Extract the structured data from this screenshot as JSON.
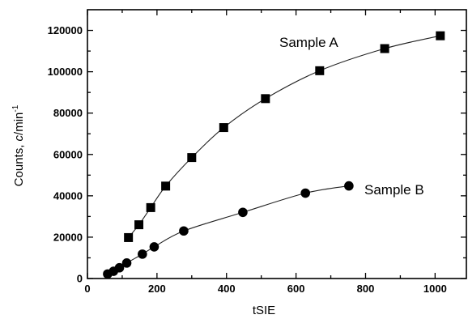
{
  "chart_data": {
    "type": "scatter",
    "title": "",
    "xlabel": "tSIE",
    "ylabel_main": "Counts, ",
    "ylabel_italic": "c",
    "ylabel_unit": "/min",
    "ylabel_sup": "-1",
    "xlim": [
      0,
      1090
    ],
    "ylim": [
      0,
      130000
    ],
    "xticks": [
      0,
      200,
      400,
      600,
      800,
      1000
    ],
    "yticks": [
      0,
      20000,
      40000,
      60000,
      80000,
      100000,
      120000
    ],
    "xtick_labels": [
      "0",
      "200",
      "400",
      "600",
      "800",
      "1000"
    ],
    "ytick_labels": [
      "0",
      "20000",
      "40000",
      "60000",
      "80000",
      "100000",
      "120000"
    ],
    "grid": false,
    "legend": "inline labels",
    "series": [
      {
        "name": "Sample A",
        "marker": "square",
        "x": [
          118,
          148,
          182,
          225,
          300,
          392,
          512,
          668,
          855,
          1015
        ],
        "y": [
          19800,
          26000,
          34300,
          44700,
          58500,
          73000,
          87000,
          100500,
          111200,
          117400
        ]
      },
      {
        "name": "Sample B",
        "marker": "circle",
        "x": [
          58,
          75,
          92,
          113,
          158,
          192,
          277,
          447,
          627,
          752
        ],
        "y": [
          2200,
          3500,
          5200,
          7500,
          11800,
          15300,
          23000,
          32000,
          41300,
          44800
        ]
      }
    ]
  }
}
